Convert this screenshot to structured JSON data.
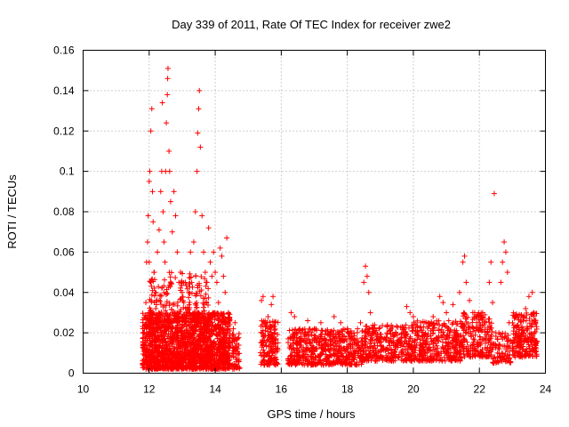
{
  "chart_data": {
    "type": "scatter",
    "title": "Day 339 of 2011, Rate Of TEC Index for receiver zwe2",
    "xlabel": "GPS time / hours",
    "ylabel": "ROTI / TECUs",
    "xlim": [
      10,
      24
    ],
    "ylim": [
      0,
      0.16
    ],
    "xticks": [
      "10",
      "12",
      "14",
      "16",
      "18",
      "20",
      "22",
      "24"
    ],
    "yticks": [
      "0",
      "0.02",
      "0.04",
      "0.06",
      "0.08",
      "0.1",
      "0.12",
      "0.14",
      "0.16"
    ],
    "grid": true,
    "marker": "+",
    "color": "#ff0000",
    "series": [
      {
        "points": [
          [
            11.85,
            0.012
          ],
          [
            11.9,
            0.035
          ],
          [
            11.92,
            0.055
          ],
          [
            11.95,
            0.065
          ],
          [
            11.97,
            0.078
          ],
          [
            12.0,
            0.095
          ],
          [
            12.02,
            0.1
          ],
          [
            12.05,
            0.12
          ],
          [
            12.08,
            0.131
          ],
          [
            12.1,
            0.09
          ],
          [
            12.12,
            0.075
          ],
          [
            12.15,
            0.05
          ],
          [
            12.18,
            0.04
          ],
          [
            12.2,
            0.032
          ],
          [
            12.05,
            0.045
          ],
          [
            12.0,
            0.055
          ],
          [
            12.25,
            0.06
          ],
          [
            12.3,
            0.071
          ],
          [
            12.35,
            0.09
          ],
          [
            12.38,
            0.1
          ],
          [
            12.4,
            0.134
          ],
          [
            12.42,
            0.08
          ],
          [
            12.45,
            0.065
          ],
          [
            12.48,
            0.055
          ],
          [
            12.5,
            0.1
          ],
          [
            12.52,
            0.124
          ],
          [
            12.55,
            0.138
          ],
          [
            12.56,
            0.146
          ],
          [
            12.57,
            0.151
          ],
          [
            12.6,
            0.11
          ],
          [
            12.62,
            0.1
          ],
          [
            12.65,
            0.085
          ],
          [
            12.7,
            0.07
          ],
          [
            12.75,
            0.09
          ],
          [
            12.8,
            0.078
          ],
          [
            12.85,
            0.06
          ],
          [
            12.9,
            0.045
          ],
          [
            12.95,
            0.05
          ],
          [
            13.0,
            0.04
          ],
          [
            13.05,
            0.035
          ],
          [
            13.1,
            0.045
          ],
          [
            13.15,
            0.03
          ],
          [
            13.2,
            0.04
          ],
          [
            13.25,
            0.06
          ],
          [
            13.35,
            0.065
          ],
          [
            13.4,
            0.08
          ],
          [
            13.45,
            0.1
          ],
          [
            13.47,
            0.119
          ],
          [
            13.5,
            0.131
          ],
          [
            13.52,
            0.14
          ],
          [
            13.55,
            0.112
          ],
          [
            13.6,
            0.078
          ],
          [
            13.65,
            0.06
          ],
          [
            13.7,
            0.05
          ],
          [
            13.75,
            0.045
          ],
          [
            13.8,
            0.072
          ],
          [
            13.85,
            0.055
          ],
          [
            13.9,
            0.048
          ],
          [
            13.95,
            0.06
          ],
          [
            14.0,
            0.05
          ],
          [
            14.05,
            0.045
          ],
          [
            14.1,
            0.035
          ],
          [
            14.15,
            0.062
          ],
          [
            14.2,
            0.058
          ],
          [
            14.25,
            0.048
          ],
          [
            14.3,
            0.04
          ],
          [
            14.35,
            0.067
          ],
          [
            14.4,
            0.03
          ],
          [
            14.55,
            0.022
          ],
          [
            14.6,
            0.025
          ],
          [
            14.65,
            0.012
          ],
          [
            14.7,
            0.006
          ],
          [
            15.4,
            0.036
          ],
          [
            15.45,
            0.038
          ],
          [
            15.5,
            0.025
          ],
          [
            15.6,
            0.028
          ],
          [
            15.7,
            0.034
          ],
          [
            15.75,
            0.038
          ],
          [
            15.8,
            0.02
          ],
          [
            15.9,
            0.015
          ],
          [
            16.3,
            0.03
          ],
          [
            16.4,
            0.028
          ],
          [
            16.5,
            0.015
          ],
          [
            16.6,
            0.02
          ],
          [
            16.8,
            0.026
          ],
          [
            17.0,
            0.022
          ],
          [
            17.2,
            0.025
          ],
          [
            17.4,
            0.02
          ],
          [
            17.6,
            0.028
          ],
          [
            17.8,
            0.025
          ],
          [
            18.0,
            0.022
          ],
          [
            18.2,
            0.02
          ],
          [
            18.4,
            0.025
          ],
          [
            18.5,
            0.045
          ],
          [
            18.55,
            0.053
          ],
          [
            18.6,
            0.048
          ],
          [
            18.65,
            0.04
          ],
          [
            18.7,
            0.03
          ],
          [
            18.8,
            0.02
          ],
          [
            19.0,
            0.018
          ],
          [
            19.2,
            0.02
          ],
          [
            19.4,
            0.018
          ],
          [
            19.6,
            0.015
          ],
          [
            19.8,
            0.033
          ],
          [
            19.9,
            0.03
          ],
          [
            20.0,
            0.028
          ],
          [
            20.2,
            0.015
          ],
          [
            20.4,
            0.025
          ],
          [
            20.6,
            0.028
          ],
          [
            20.8,
            0.038
          ],
          [
            20.9,
            0.035
          ],
          [
            21.0,
            0.03
          ],
          [
            21.2,
            0.034
          ],
          [
            21.4,
            0.04
          ],
          [
            21.5,
            0.055
          ],
          [
            21.55,
            0.058
          ],
          [
            21.6,
            0.045
          ],
          [
            21.7,
            0.036
          ],
          [
            21.8,
            0.03
          ],
          [
            21.9,
            0.028
          ],
          [
            22.0,
            0.025
          ],
          [
            22.1,
            0.03
          ],
          [
            22.3,
            0.045
          ],
          [
            22.35,
            0.055
          ],
          [
            22.4,
            0.035
          ],
          [
            22.45,
            0.089
          ],
          [
            22.5,
            0.02
          ],
          [
            22.55,
            0.01
          ],
          [
            22.6,
            0.012
          ],
          [
            22.65,
            0.045
          ],
          [
            22.7,
            0.055
          ],
          [
            22.75,
            0.065
          ],
          [
            22.8,
            0.06
          ],
          [
            22.85,
            0.05
          ],
          [
            22.9,
            0.025
          ],
          [
            23.0,
            0.015
          ],
          [
            23.2,
            0.02
          ],
          [
            23.4,
            0.032
          ],
          [
            23.5,
            0.038
          ],
          [
            23.6,
            0.04
          ],
          [
            23.65,
            0.03
          ],
          [
            23.7,
            0.025
          ]
        ],
        "dense_bands": [
          {
            "x": [
              11.8,
              14.45
            ],
            "y": [
              0.002,
              0.03
            ],
            "n": 1800
          },
          {
            "x": [
              12.0,
              13.8
            ],
            "y": [
              0.025,
              0.05
            ],
            "n": 220
          },
          {
            "x": [
              14.5,
              14.75
            ],
            "y": [
              0.002,
              0.02
            ],
            "n": 60
          },
          {
            "x": [
              15.35,
              15.9
            ],
            "y": [
              0.004,
              0.026
            ],
            "n": 160
          },
          {
            "x": [
              16.2,
              18.45
            ],
            "y": [
              0.004,
              0.022
            ],
            "n": 550
          },
          {
            "x": [
              18.45,
              19.9
            ],
            "y": [
              0.006,
              0.024
            ],
            "n": 320
          },
          {
            "x": [
              19.9,
              21.5
            ],
            "y": [
              0.006,
              0.026
            ],
            "n": 380
          },
          {
            "x": [
              21.5,
              22.4
            ],
            "y": [
              0.008,
              0.03
            ],
            "n": 200
          },
          {
            "x": [
              22.4,
              22.95
            ],
            "y": [
              0.005,
              0.02
            ],
            "n": 80
          },
          {
            "x": [
              23.0,
              23.75
            ],
            "y": [
              0.008,
              0.03
            ],
            "n": 220
          }
        ]
      }
    ]
  }
}
